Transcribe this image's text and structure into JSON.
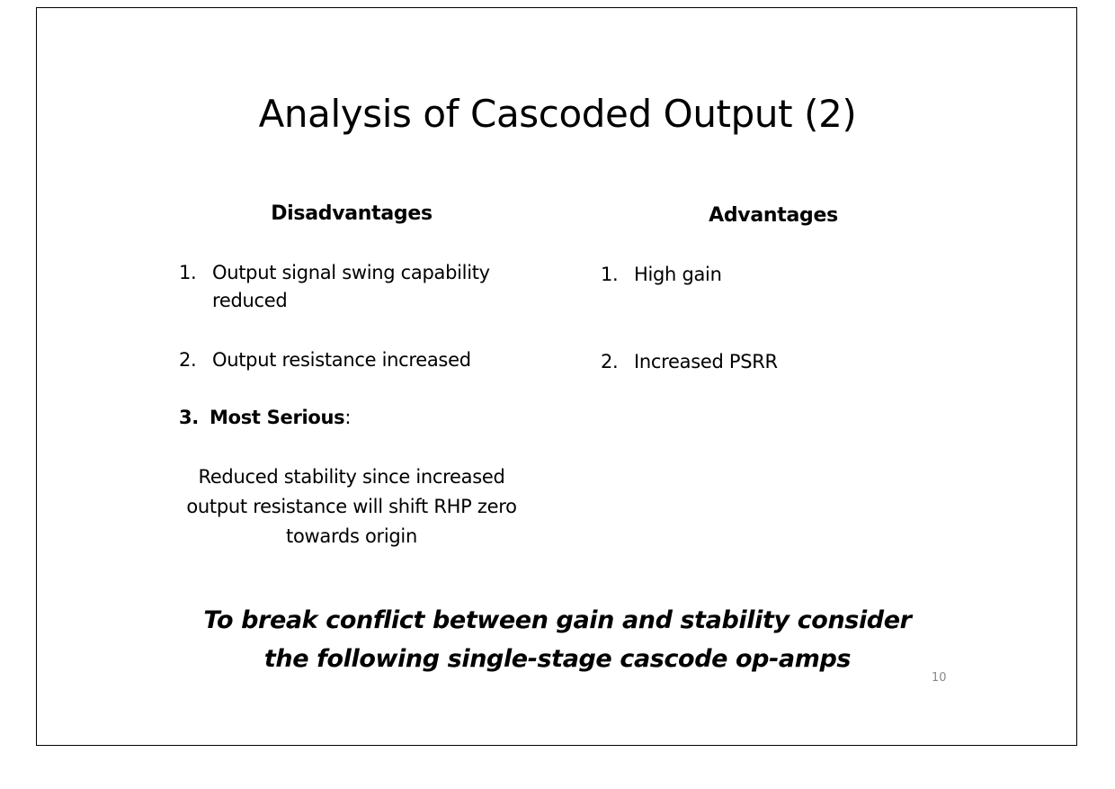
{
  "slide": {
    "title": "Analysis of Cascoded Output (2)",
    "disadvantages": {
      "heading": "Disadvantages",
      "items": [
        {
          "number": "1.",
          "text": "Output signal swing capability reduced"
        },
        {
          "number": "2.",
          "text": "Output resistance increased"
        },
        {
          "number": "3.",
          "label": "Most Serious",
          "suffix": ":"
        }
      ],
      "detail": "Reduced stability since increased output resistance will shift RHP zero towards origin"
    },
    "advantages": {
      "heading": "Advantages",
      "items": [
        {
          "number": "1.",
          "text": "High gain"
        },
        {
          "number": "2.",
          "text": "Increased PSRR"
        }
      ]
    },
    "conclusion": "To break conflict between gain and stability consider the following single-stage cascode op-amps",
    "page_number": "10"
  }
}
